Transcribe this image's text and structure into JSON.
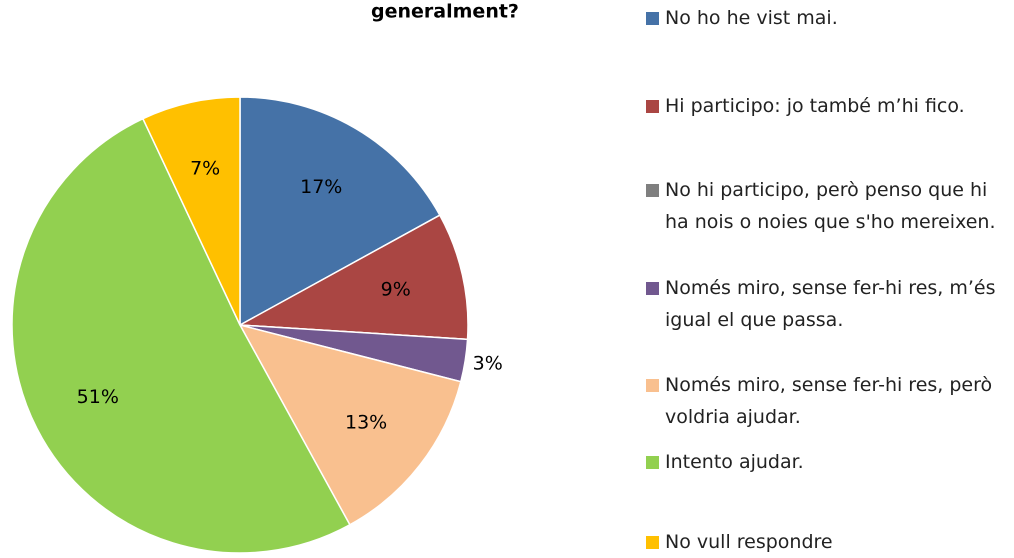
{
  "chart_data": {
    "type": "pie",
    "title": "generalment?",
    "categories": [
      "No ho he vist mai.",
      "Hi participo: jo també m’hi fico.",
      "No hi participo, però penso que hi ha nois o noies que s'ho mereixen.",
      "Només miro, sense fer-hi res, m’és igual el que passa.",
      "Només miro, sense fer-hi res, però voldria ajudar.",
      "Intento ajudar.",
      "No vull respondre"
    ],
    "values": [
      17,
      9,
      0,
      3,
      13,
      51,
      7
    ],
    "value_labels": [
      "17%",
      "9%",
      null,
      "3%",
      "13%",
      "51%",
      "7%"
    ],
    "colors": [
      "#4572A7",
      "#AA4643",
      "#7F7F7F",
      "#71588F",
      "#F9C08F",
      "#92D050",
      "#FFC000"
    ]
  }
}
